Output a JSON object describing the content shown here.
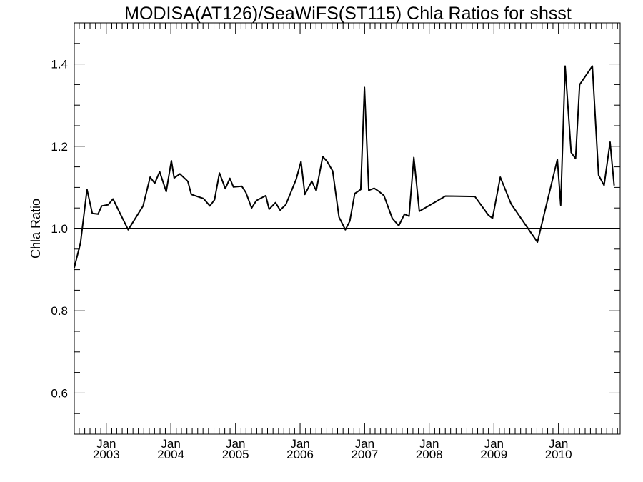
{
  "chart_data": {
    "type": "line",
    "title": "MODISA(AT126)/SeaWiFS(ST115)  Chla Ratios for shsst",
    "xlabel": "",
    "ylabel": "Chla Ratio",
    "xlim": [
      "2002-07-04",
      "2010-12-16"
    ],
    "ylim": [
      0.5,
      1.5
    ],
    "grid": false,
    "legend": "none",
    "y_ticks": [
      0.6,
      0.8,
      1.0,
      1.2,
      1.4
    ],
    "y_tick_labels": [
      "0.6",
      "0.8",
      "1.0",
      "1.2",
      "1.4"
    ],
    "x_ticks": [
      {
        "date": "2003-01-01",
        "month": "Jan",
        "year": "2003"
      },
      {
        "date": "2004-01-01",
        "month": "Jan",
        "year": "2004"
      },
      {
        "date": "2005-01-01",
        "month": "Jan",
        "year": "2005"
      },
      {
        "date": "2006-01-01",
        "month": "Jan",
        "year": "2006"
      },
      {
        "date": "2007-01-01",
        "month": "Jan",
        "year": "2007"
      },
      {
        "date": "2008-01-01",
        "month": "Jan",
        "year": "2008"
      },
      {
        "date": "2009-01-01",
        "month": "Jan",
        "year": "2009"
      },
      {
        "date": "2010-01-01",
        "month": "Jan",
        "year": "2010"
      }
    ],
    "reference_line": 1.0,
    "series": [
      {
        "color": "#000000",
        "points": [
          [
            "2002-07-04",
            0.905
          ],
          [
            "2002-08-08",
            0.965
          ],
          [
            "2002-09-14",
            1.095
          ],
          [
            "2002-10-14",
            1.037
          ],
          [
            "2002-11-15",
            1.035
          ],
          [
            "2002-12-06",
            1.055
          ],
          [
            "2003-01-12",
            1.058
          ],
          [
            "2003-02-08",
            1.072
          ],
          [
            "2003-03-22",
            1.035
          ],
          [
            "2003-05-05",
            0.997
          ],
          [
            "2003-07-28",
            1.055
          ],
          [
            "2003-09-06",
            1.125
          ],
          [
            "2003-10-02",
            1.11
          ],
          [
            "2003-10-30",
            1.138
          ],
          [
            "2003-12-06",
            1.09
          ],
          [
            "2004-01-04",
            1.165
          ],
          [
            "2004-01-20",
            1.123
          ],
          [
            "2004-02-21",
            1.133
          ],
          [
            "2004-04-06",
            1.115
          ],
          [
            "2004-04-26",
            1.083
          ],
          [
            "2004-07-04",
            1.073
          ],
          [
            "2004-08-09",
            1.055
          ],
          [
            "2004-09-04",
            1.07
          ],
          [
            "2004-10-02",
            1.135
          ],
          [
            "2004-11-04",
            1.097
          ],
          [
            "2004-11-30",
            1.122
          ],
          [
            "2004-12-20",
            1.101
          ],
          [
            "2005-02-05",
            1.103
          ],
          [
            "2005-02-28",
            1.088
          ],
          [
            "2005-04-02",
            1.05
          ],
          [
            "2005-04-29",
            1.068
          ],
          [
            "2005-06-21",
            1.08
          ],
          [
            "2005-07-10",
            1.047
          ],
          [
            "2005-08-15",
            1.063
          ],
          [
            "2005-09-10",
            1.045
          ],
          [
            "2005-10-12",
            1.058
          ],
          [
            "2005-12-10",
            1.12
          ],
          [
            "2006-01-06",
            1.163
          ],
          [
            "2006-01-28",
            1.083
          ],
          [
            "2006-03-08",
            1.115
          ],
          [
            "2006-04-02",
            1.092
          ],
          [
            "2006-05-09",
            1.175
          ],
          [
            "2006-06-03",
            1.163
          ],
          [
            "2006-07-04",
            1.14
          ],
          [
            "2006-08-09",
            1.028
          ],
          [
            "2006-09-14",
            0.997
          ],
          [
            "2006-10-09",
            1.018
          ],
          [
            "2006-11-06",
            1.085
          ],
          [
            "2006-12-10",
            1.095
          ],
          [
            "2006-12-31",
            1.343
          ],
          [
            "2007-01-24",
            1.093
          ],
          [
            "2007-02-24",
            1.098
          ],
          [
            "2007-03-24",
            1.09
          ],
          [
            "2007-04-20",
            1.08
          ],
          [
            "2007-06-06",
            1.025
          ],
          [
            "2007-07-13",
            1.007
          ],
          [
            "2007-08-14",
            1.035
          ],
          [
            "2007-09-09",
            1.03
          ],
          [
            "2007-10-06",
            1.173
          ],
          [
            "2007-11-06",
            1.042
          ],
          [
            "2008-04-02",
            1.079
          ],
          [
            "2008-09-15",
            1.078
          ],
          [
            "2008-11-30",
            1.033
          ],
          [
            "2008-12-24",
            1.025
          ],
          [
            "2009-02-06",
            1.125
          ],
          [
            "2009-04-08",
            1.06
          ],
          [
            "2009-09-04",
            0.967
          ],
          [
            "2009-12-26",
            1.168
          ],
          [
            "2010-01-14",
            1.057
          ],
          [
            "2010-02-08",
            1.395
          ],
          [
            "2010-03-14",
            1.185
          ],
          [
            "2010-04-08",
            1.17
          ],
          [
            "2010-05-01",
            1.35
          ],
          [
            "2010-07-12",
            1.395
          ],
          [
            "2010-08-16",
            1.13
          ],
          [
            "2010-09-16",
            1.105
          ],
          [
            "2010-10-20",
            1.21
          ],
          [
            "2010-11-12",
            1.105
          ]
        ]
      }
    ]
  }
}
